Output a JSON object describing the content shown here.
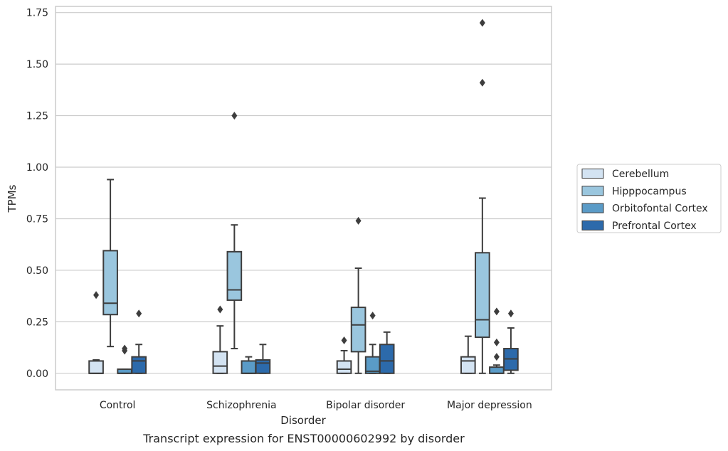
{
  "chart_data": {
    "type": "box",
    "title": "Transcript expression for ENST00000602992 by disorder",
    "xlabel": "Disorder",
    "ylabel": "TPMs",
    "ylim": [
      -0.08,
      1.78
    ],
    "yticks": [
      0.0,
      0.25,
      0.5,
      0.75,
      1.0,
      1.25,
      1.5,
      1.75
    ],
    "ytick_labels": [
      "0.00",
      "0.25",
      "0.50",
      "0.75",
      "1.00",
      "1.25",
      "1.50",
      "1.75"
    ],
    "grid": "horizontal",
    "legend_position": "right",
    "categories": [
      "Control",
      "Schizophrenia",
      "Bipolar disorder",
      "Major depression"
    ],
    "series": [
      {
        "name": "Cerebellum",
        "color": "#d3e3f2",
        "boxes": [
          {
            "whislo": 0.0,
            "q1": 0.0,
            "med": 0.0,
            "q3": 0.06,
            "whishi": 0.065,
            "fliers": [
              0.38
            ]
          },
          {
            "whislo": 0.0,
            "q1": 0.0,
            "med": 0.035,
            "q3": 0.105,
            "whishi": 0.23,
            "fliers": [
              0.31
            ]
          },
          {
            "whislo": 0.0,
            "q1": 0.0,
            "med": 0.02,
            "q3": 0.06,
            "whishi": 0.11,
            "fliers": [
              0.16
            ]
          },
          {
            "whislo": 0.0,
            "q1": 0.0,
            "med": 0.06,
            "q3": 0.08,
            "whishi": 0.18,
            "fliers": []
          }
        ]
      },
      {
        "name": "Hipppocampus",
        "color": "#9ac6de",
        "boxes": [
          {
            "whislo": 0.13,
            "q1": 0.285,
            "med": 0.34,
            "q3": 0.595,
            "whishi": 0.94,
            "fliers": []
          },
          {
            "whislo": 0.12,
            "q1": 0.355,
            "med": 0.405,
            "q3": 0.59,
            "whishi": 0.72,
            "fliers": [
              1.25
            ]
          },
          {
            "whislo": 0.0,
            "q1": 0.105,
            "med": 0.235,
            "q3": 0.32,
            "whishi": 0.51,
            "fliers": [
              0.74
            ]
          },
          {
            "whislo": 0.0,
            "q1": 0.175,
            "med": 0.26,
            "q3": 0.585,
            "whishi": 0.85,
            "fliers": [
              1.41,
              1.7
            ]
          }
        ]
      },
      {
        "name": "Orbitofontal Cortex",
        "color": "#5a9bc7",
        "boxes": [
          {
            "whislo": 0.0,
            "q1": 0.0,
            "med": 0.0,
            "q3": 0.02,
            "whishi": 0.02,
            "fliers": [
              0.11,
              0.12
            ]
          },
          {
            "whislo": 0.0,
            "q1": 0.0,
            "med": 0.0,
            "q3": 0.06,
            "whishi": 0.08,
            "fliers": []
          },
          {
            "whislo": 0.0,
            "q1": 0.0,
            "med": 0.01,
            "q3": 0.08,
            "whishi": 0.14,
            "fliers": [
              0.28
            ]
          },
          {
            "whislo": 0.0,
            "q1": 0.0,
            "med": 0.0,
            "q3": 0.03,
            "whishi": 0.04,
            "fliers": [
              0.08,
              0.15,
              0.3
            ]
          }
        ]
      },
      {
        "name": "Prefrontal Cortex",
        "color": "#2c6aab",
        "boxes": [
          {
            "whislo": 0.0,
            "q1": 0.0,
            "med": 0.06,
            "q3": 0.08,
            "whishi": 0.14,
            "fliers": [
              0.29
            ]
          },
          {
            "whislo": 0.0,
            "q1": 0.0,
            "med": 0.05,
            "q3": 0.065,
            "whishi": 0.14,
            "fliers": []
          },
          {
            "whislo": 0.0,
            "q1": 0.0,
            "med": 0.06,
            "q3": 0.14,
            "whishi": 0.2,
            "fliers": []
          },
          {
            "whislo": 0.0,
            "q1": 0.015,
            "med": 0.07,
            "q3": 0.12,
            "whishi": 0.22,
            "fliers": [
              0.29
            ]
          }
        ]
      }
    ]
  }
}
